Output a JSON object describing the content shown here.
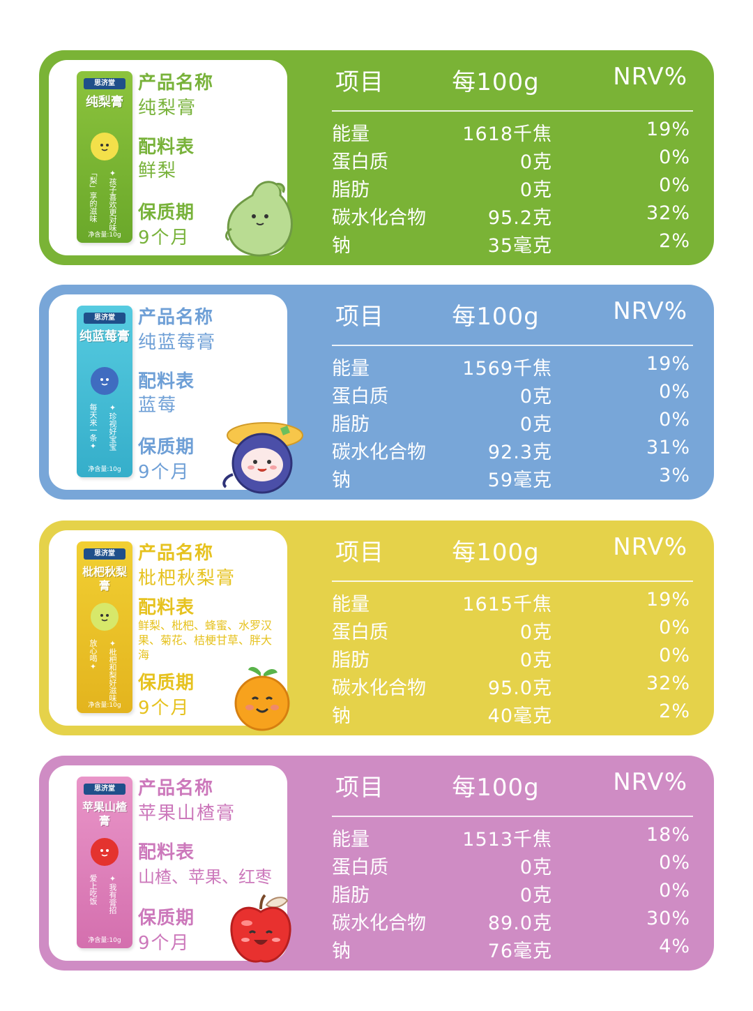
{
  "table_headers": {
    "item": "项目",
    "per": "每100g",
    "nrv": "NRV%"
  },
  "info_labels": {
    "name": "产品名称",
    "ingredients": "配料表",
    "shelf": "保质期"
  },
  "nutrient_names": [
    "能量",
    "蛋白质",
    "脂肪",
    "碳水化合物",
    "钠"
  ],
  "colors": {
    "green": "#7ab336",
    "blue": "#78a6d8",
    "yellow": "#e5d24a",
    "pink": "#cf8cc4"
  },
  "products": [
    {
      "name": "纯梨膏",
      "ingredients": "鲜梨",
      "shelf_life": "9个月",
      "sachet": {
        "brand": "思济堂",
        "title": "纯梨膏",
        "slogan_a": "「梨」享的滋味",
        "slogan_b": "✦孩子喜欢更对味",
        "net": "净含量:10g"
      },
      "mascot_icon": "pear-mascot-icon",
      "nutrition": [
        {
          "value": "1618千焦",
          "nrv": "19%"
        },
        {
          "value": "0克",
          "nrv": "0%"
        },
        {
          "value": "0克",
          "nrv": "0%"
        },
        {
          "value": "95.2克",
          "nrv": "32%"
        },
        {
          "value": "35毫克",
          "nrv": "2%"
        }
      ]
    },
    {
      "name": "纯蓝莓膏",
      "ingredients": "蓝莓",
      "shelf_life": "9个月",
      "sachet": {
        "brand": "思济堂",
        "title": "纯蓝莓膏",
        "slogan_a": "每天来一条✦",
        "slogan_b": "✦珍视好宝宝",
        "net": "净含量:10g"
      },
      "mascot_icon": "blueberry-mascot-icon",
      "nutrition": [
        {
          "value": "1569千焦",
          "nrv": "19%"
        },
        {
          "value": "0克",
          "nrv": "0%"
        },
        {
          "value": "0克",
          "nrv": "0%"
        },
        {
          "value": "92.3克",
          "nrv": "31%"
        },
        {
          "value": "59毫克",
          "nrv": "3%"
        }
      ]
    },
    {
      "name": "枇杷秋梨膏",
      "ingredients": "鲜梨、枇杷、蜂蜜、水罗汉果、菊花、桔梗甘草、胖大海",
      "shelf_life": "9个月",
      "sachet": {
        "brand": "思济堂",
        "title": "枇杷秋梨膏",
        "slogan_a": "放心喝✦",
        "slogan_b": "✦枇杷和梨好滋味",
        "net": "净含量:10g"
      },
      "mascot_icon": "orange-mascot-icon",
      "nutrition": [
        {
          "value": "1615千焦",
          "nrv": "19%"
        },
        {
          "value": "0克",
          "nrv": "0%"
        },
        {
          "value": "0克",
          "nrv": "0%"
        },
        {
          "value": "95.0克",
          "nrv": "32%"
        },
        {
          "value": "40毫克",
          "nrv": "2%"
        }
      ]
    },
    {
      "name": "苹果山楂膏",
      "ingredients": "山楂、苹果、红枣",
      "shelf_life": "9个月",
      "sachet": {
        "brand": "思济堂",
        "title": "苹果山楂膏",
        "slogan_a": "爱上吃饭",
        "slogan_b": "✦我有膏招",
        "net": "净含量:10g"
      },
      "mascot_icon": "apple-mascot-icon",
      "nutrition": [
        {
          "value": "1513千焦",
          "nrv": "18%"
        },
        {
          "value": "0克",
          "nrv": "0%"
        },
        {
          "value": "0克",
          "nrv": "0%"
        },
        {
          "value": "89.0克",
          "nrv": "30%"
        },
        {
          "value": "76毫克",
          "nrv": "4%"
        }
      ]
    }
  ]
}
